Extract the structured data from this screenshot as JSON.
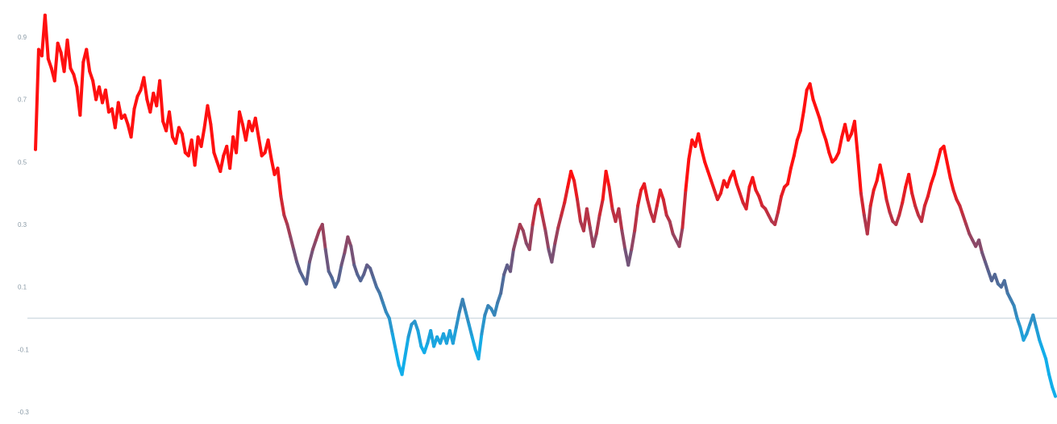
{
  "chart_data": {
    "type": "line",
    "title": "",
    "xlabel": "",
    "ylabel": "",
    "ylim": [
      -0.3,
      0.99
    ],
    "yticks": [
      "0.9",
      "0.7",
      "0.5",
      "0.3",
      "0.1",
      "-0.1",
      "-0.3"
    ],
    "ytick_values": [
      0.9,
      0.7,
      0.5,
      0.3,
      0.1,
      -0.1,
      -0.3
    ],
    "xtick_labels": [
      "",
      "",
      "",
      "",
      "",
      "",
      "",
      "",
      ""
    ],
    "zero_line_color": "#d3dde3",
    "color_scale": {
      "positive": "#ff1010",
      "negative": "#12aeea"
    },
    "series": [
      {
        "values": [
          0.54,
          0.86,
          0.84,
          0.97,
          0.83,
          0.8,
          0.76,
          0.88,
          0.85,
          0.79,
          0.89,
          0.8,
          0.78,
          0.74,
          0.65,
          0.82,
          0.86,
          0.79,
          0.76,
          0.7,
          0.74,
          0.69,
          0.73,
          0.66,
          0.67,
          0.61,
          0.69,
          0.64,
          0.65,
          0.62,
          0.58,
          0.67,
          0.71,
          0.73,
          0.77,
          0.7,
          0.66,
          0.72,
          0.68,
          0.76,
          0.63,
          0.6,
          0.66,
          0.58,
          0.56,
          0.61,
          0.59,
          0.53,
          0.52,
          0.57,
          0.49,
          0.58,
          0.55,
          0.61,
          0.68,
          0.62,
          0.53,
          0.5,
          0.47,
          0.52,
          0.55,
          0.48,
          0.58,
          0.53,
          0.66,
          0.62,
          0.57,
          0.63,
          0.6,
          0.64,
          0.58,
          0.52,
          0.53,
          0.57,
          0.51,
          0.46,
          0.48,
          0.39,
          0.33,
          0.3,
          0.26,
          0.22,
          0.18,
          0.15,
          0.13,
          0.11,
          0.18,
          0.22,
          0.25,
          0.28,
          0.3,
          0.22,
          0.15,
          0.13,
          0.1,
          0.12,
          0.17,
          0.21,
          0.26,
          0.23,
          0.17,
          0.14,
          0.12,
          0.14,
          0.17,
          0.16,
          0.13,
          0.1,
          0.08,
          0.05,
          0.02,
          0.0,
          -0.05,
          -0.1,
          -0.15,
          -0.18,
          -0.12,
          -0.06,
          -0.02,
          -0.01,
          -0.04,
          -0.09,
          -0.11,
          -0.08,
          -0.04,
          -0.09,
          -0.06,
          -0.08,
          -0.05,
          -0.08,
          -0.04,
          -0.08,
          -0.03,
          0.02,
          0.06,
          0.02,
          -0.02,
          -0.06,
          -0.1,
          -0.13,
          -0.05,
          0.01,
          0.04,
          0.03,
          0.01,
          0.05,
          0.08,
          0.14,
          0.17,
          0.15,
          0.22,
          0.26,
          0.3,
          0.28,
          0.24,
          0.22,
          0.3,
          0.36,
          0.38,
          0.33,
          0.28,
          0.22,
          0.18,
          0.24,
          0.29,
          0.33,
          0.37,
          0.42,
          0.47,
          0.44,
          0.38,
          0.31,
          0.28,
          0.35,
          0.29,
          0.23,
          0.27,
          0.33,
          0.38,
          0.47,
          0.42,
          0.35,
          0.31,
          0.35,
          0.28,
          0.22,
          0.17,
          0.22,
          0.28,
          0.36,
          0.41,
          0.43,
          0.38,
          0.34,
          0.31,
          0.36,
          0.41,
          0.38,
          0.33,
          0.31,
          0.27,
          0.25,
          0.23,
          0.29,
          0.41,
          0.51,
          0.57,
          0.55,
          0.59,
          0.54,
          0.5,
          0.47,
          0.44,
          0.41,
          0.38,
          0.4,
          0.44,
          0.42,
          0.45,
          0.47,
          0.43,
          0.4,
          0.37,
          0.35,
          0.42,
          0.45,
          0.41,
          0.39,
          0.36,
          0.35,
          0.33,
          0.31,
          0.3,
          0.34,
          0.39,
          0.42,
          0.43,
          0.48,
          0.52,
          0.57,
          0.6,
          0.66,
          0.73,
          0.75,
          0.7,
          0.67,
          0.64,
          0.6,
          0.57,
          0.53,
          0.5,
          0.51,
          0.53,
          0.58,
          0.62,
          0.57,
          0.59,
          0.63,
          0.52,
          0.4,
          0.33,
          0.27,
          0.36,
          0.41,
          0.44,
          0.49,
          0.44,
          0.38,
          0.34,
          0.31,
          0.3,
          0.33,
          0.37,
          0.42,
          0.46,
          0.4,
          0.36,
          0.33,
          0.31,
          0.36,
          0.39,
          0.43,
          0.46,
          0.5,
          0.54,
          0.55,
          0.5,
          0.45,
          0.41,
          0.38,
          0.36,
          0.33,
          0.3,
          0.27,
          0.25,
          0.23,
          0.25,
          0.21,
          0.18,
          0.15,
          0.12,
          0.14,
          0.11,
          0.1,
          0.12,
          0.08,
          0.06,
          0.04,
          0.0,
          -0.03,
          -0.07,
          -0.05,
          -0.02,
          0.01,
          -0.03,
          -0.07,
          -0.1,
          -0.13,
          -0.18,
          -0.22,
          -0.25
        ]
      }
    ]
  }
}
